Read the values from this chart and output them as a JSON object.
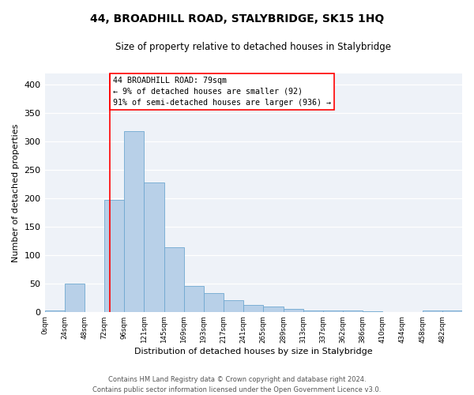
{
  "title": "44, BROADHILL ROAD, STALYBRIDGE, SK15 1HQ",
  "subtitle": "Size of property relative to detached houses in Stalybridge",
  "xlabel": "Distribution of detached houses by size in Stalybridge",
  "ylabel": "Number of detached properties",
  "bin_labels": [
    "0sqm",
    "24sqm",
    "48sqm",
    "72sqm",
    "96sqm",
    "121sqm",
    "145sqm",
    "169sqm",
    "193sqm",
    "217sqm",
    "241sqm",
    "265sqm",
    "289sqm",
    "313sqm",
    "337sqm",
    "362sqm",
    "386sqm",
    "410sqm",
    "434sqm",
    "458sqm",
    "482sqm"
  ],
  "bar_heights": [
    2,
    50,
    0,
    197,
    318,
    228,
    114,
    45,
    33,
    21,
    12,
    9,
    5,
    3,
    2,
    2,
    1,
    0,
    0,
    2,
    3
  ],
  "bar_color": "#b8d0e8",
  "bar_edge_color": "#6fa8d0",
  "property_line_x": 3,
  "property_line_color": "red",
  "annotation_title": "44 BROADHILL ROAD: 79sqm",
  "annotation_line1": "← 9% of detached houses are smaller (92)",
  "annotation_line2": "91% of semi-detached houses are larger (936) →",
  "annotation_box_color": "white",
  "annotation_box_edge": "red",
  "ylim": [
    0,
    420
  ],
  "yticks": [
    0,
    50,
    100,
    150,
    200,
    250,
    300,
    350,
    400
  ],
  "footer1": "Contains HM Land Registry data © Crown copyright and database right 2024.",
  "footer2": "Contains public sector information licensed under the Open Government Licence v3.0.",
  "n_bins": 21,
  "ax_bg": "#eef2f8"
}
